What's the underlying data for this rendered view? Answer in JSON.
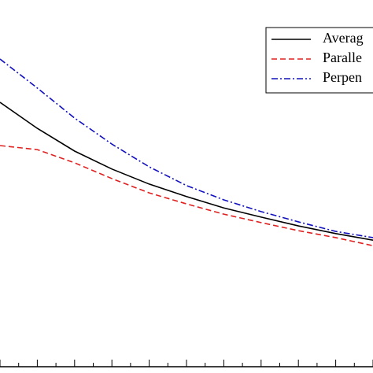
{
  "chart_data": {
    "type": "line",
    "x": [
      0,
      1,
      2,
      3,
      4,
      5,
      6,
      7,
      8,
      9,
      10
    ],
    "series": [
      {
        "name": "Averag",
        "color": "#000000",
        "dash": "solid",
        "values": [
          7.21,
          6.5,
          5.88,
          5.39,
          4.98,
          4.64,
          4.33,
          4.08,
          3.84,
          3.63,
          3.45
        ]
      },
      {
        "name": "Paralle",
        "color": "#e02020",
        "dash": "dashed",
        "values": [
          6.03,
          5.92,
          5.56,
          5.13,
          4.74,
          4.44,
          4.16,
          3.93,
          3.71,
          3.52,
          3.3
        ]
      },
      {
        "name": "Perpen",
        "color": "#1010c0",
        "dash": "dashdot",
        "values": [
          8.39,
          7.6,
          6.78,
          6.07,
          5.45,
          4.94,
          4.55,
          4.23,
          3.95,
          3.69,
          3.52
        ]
      }
    ],
    "xlim": [
      0,
      10
    ],
    "ylim": [
      0,
      10
    ],
    "xticks": [
      0,
      0.5,
      1,
      1.5,
      2,
      2.5,
      3,
      3.5,
      4,
      4.5,
      5,
      5.5,
      6,
      6.5,
      7,
      7.5,
      8,
      8.5,
      9,
      9.5,
      10
    ],
    "legend": "upper right"
  }
}
